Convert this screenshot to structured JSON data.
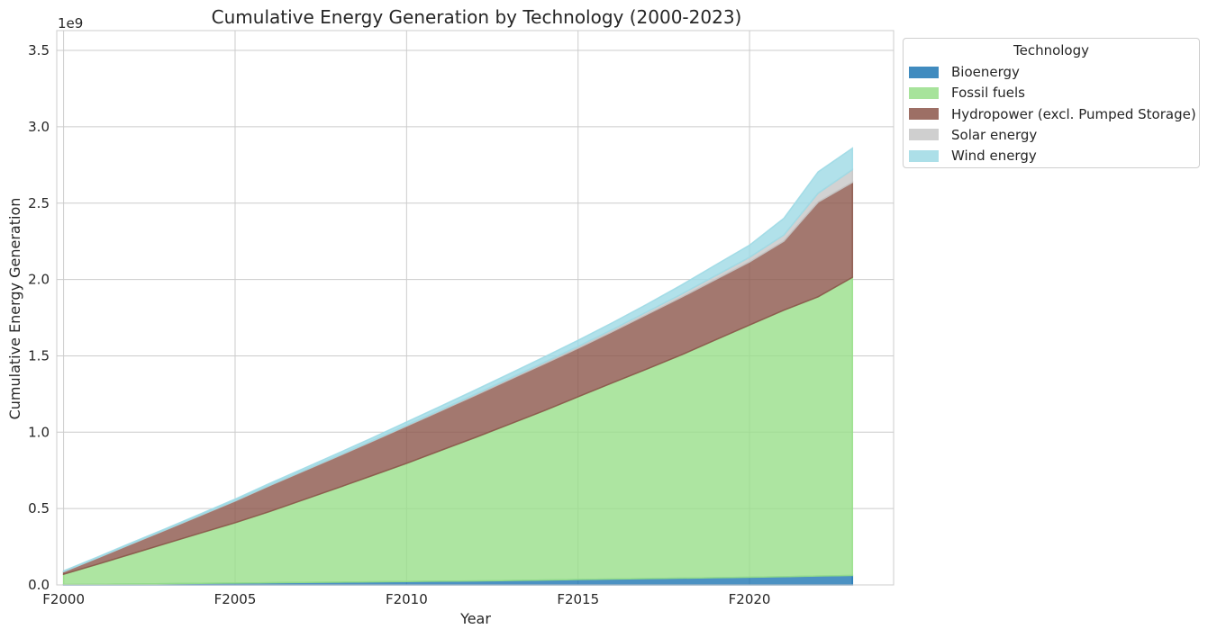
{
  "chart_data": {
    "type": "area",
    "stacked": true,
    "title": "Cumulative Energy Generation by Technology (2000-2023)",
    "xlabel": "Year",
    "ylabel": "Cumulative Energy Generation",
    "y_scale_label": "1e9",
    "ylim": [
      0,
      3.63
    ],
    "y_multiplier": 1000000000,
    "xlim": [
      1999.8,
      2024.2
    ],
    "grid": true,
    "legend": {
      "title": "Technology",
      "placement": "outside-top-right"
    },
    "x": [
      2000,
      2001,
      2002,
      2003,
      2004,
      2005,
      2006,
      2007,
      2008,
      2009,
      2010,
      2011,
      2012,
      2013,
      2014,
      2015,
      2016,
      2017,
      2018,
      2019,
      2020,
      2021,
      2022,
      2023
    ],
    "x_ticks": [
      2000,
      2005,
      2010,
      2015,
      2020
    ],
    "x_tick_labels": [
      "F2000",
      "F2005",
      "F2010",
      "F2015",
      "F2020"
    ],
    "y_ticks": [
      0.0,
      0.5,
      1.0,
      1.5,
      2.0,
      2.5,
      3.0,
      3.5
    ],
    "y_tick_labels": [
      "0.0",
      "0.5",
      "1.0",
      "1.5",
      "2.0",
      "2.5",
      "3.0",
      "3.5"
    ],
    "series": [
      {
        "name": "Bioenergy",
        "color": "#1f77b4",
        "values": [
          0.002,
          0.004,
          0.006,
          0.008,
          0.01,
          0.012,
          0.014,
          0.016,
          0.018,
          0.02,
          0.022,
          0.024,
          0.026,
          0.029,
          0.032,
          0.035,
          0.038,
          0.041,
          0.044,
          0.047,
          0.05,
          0.054,
          0.058,
          0.062
        ]
      },
      {
        "name": "Fossil fuels",
        "color": "#98df8a",
        "values": [
          0.068,
          0.132,
          0.198,
          0.264,
          0.33,
          0.395,
          0.466,
          0.542,
          0.618,
          0.696,
          0.774,
          0.857,
          0.939,
          1.023,
          1.108,
          1.197,
          1.285,
          1.372,
          1.461,
          1.557,
          1.652,
          1.745,
          1.829,
          1.952
        ]
      },
      {
        "name": "Hydropower (excl. Pumped Storage)",
        "color": "#8c564b",
        "values": [
          0.016,
          0.041,
          0.066,
          0.09,
          0.116,
          0.142,
          0.169,
          0.188,
          0.206,
          0.224,
          0.244,
          0.259,
          0.276,
          0.292,
          0.306,
          0.318,
          0.335,
          0.357,
          0.377,
          0.395,
          0.413,
          0.452,
          0.62,
          0.622
        ]
      },
      {
        "name": "Solar energy",
        "color": "#c7c7c7",
        "values": [
          0.002,
          0.002,
          0.002,
          0.002,
          0.002,
          0.003,
          0.003,
          0.003,
          0.004,
          0.004,
          0.005,
          0.006,
          0.007,
          0.008,
          0.01,
          0.012,
          0.014,
          0.017,
          0.02,
          0.025,
          0.03,
          0.04,
          0.058,
          0.083
        ]
      },
      {
        "name": "Wind energy",
        "color": "#9edae5",
        "values": [
          0.004,
          0.005,
          0.006,
          0.007,
          0.008,
          0.01,
          0.012,
          0.014,
          0.016,
          0.019,
          0.022,
          0.025,
          0.028,
          0.031,
          0.035,
          0.04,
          0.045,
          0.05,
          0.06,
          0.07,
          0.08,
          0.11,
          0.14,
          0.141
        ]
      }
    ]
  }
}
